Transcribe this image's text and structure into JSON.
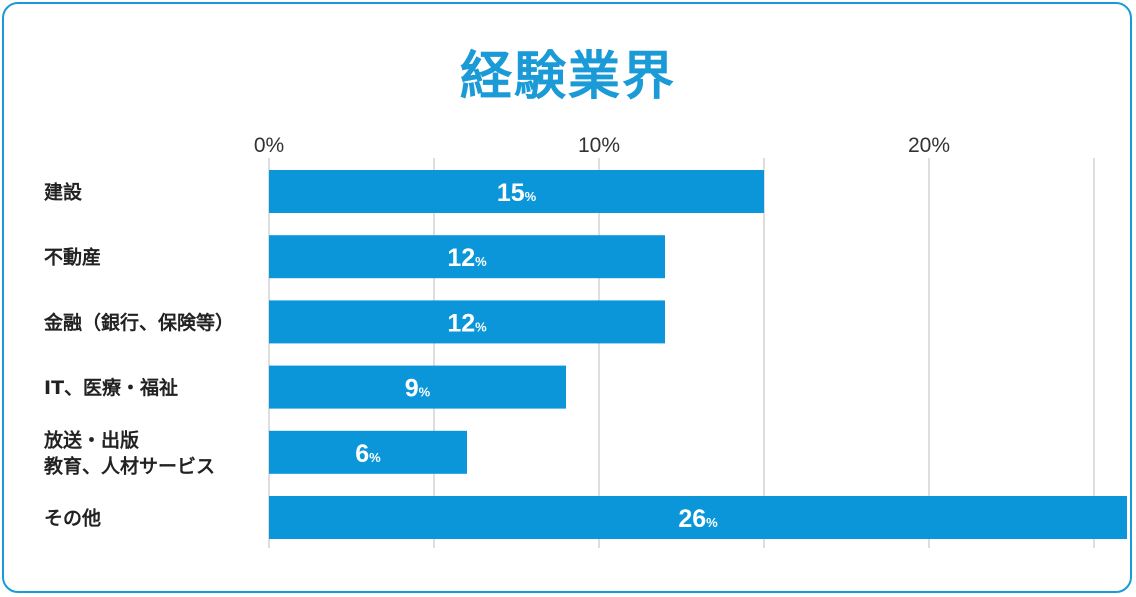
{
  "title": "経験業界",
  "chart_data": {
    "type": "bar",
    "orientation": "horizontal",
    "title": "経験業界",
    "categories": [
      [
        "建設"
      ],
      [
        "不動産"
      ],
      [
        "金融（銀行、保険等）"
      ],
      [
        "IT、医療・福祉"
      ],
      [
        "放送・出版",
        "教育、人材サービス"
      ],
      [
        "その他"
      ]
    ],
    "values": [
      15,
      12,
      12,
      9,
      6,
      26
    ],
    "value_unit": "%",
    "xlim": [
      0,
      25
    ],
    "xticks": [
      {
        "value": 0,
        "label": "0%"
      },
      {
        "value": 10,
        "label": "10%"
      },
      {
        "value": 20,
        "label": "20%"
      }
    ],
    "gridlines": [
      0,
      5,
      10,
      15,
      20,
      25
    ],
    "grid": true,
    "legend": "none",
    "bar_color": "#0a96d8",
    "grid_color": "#c8c8c8"
  }
}
